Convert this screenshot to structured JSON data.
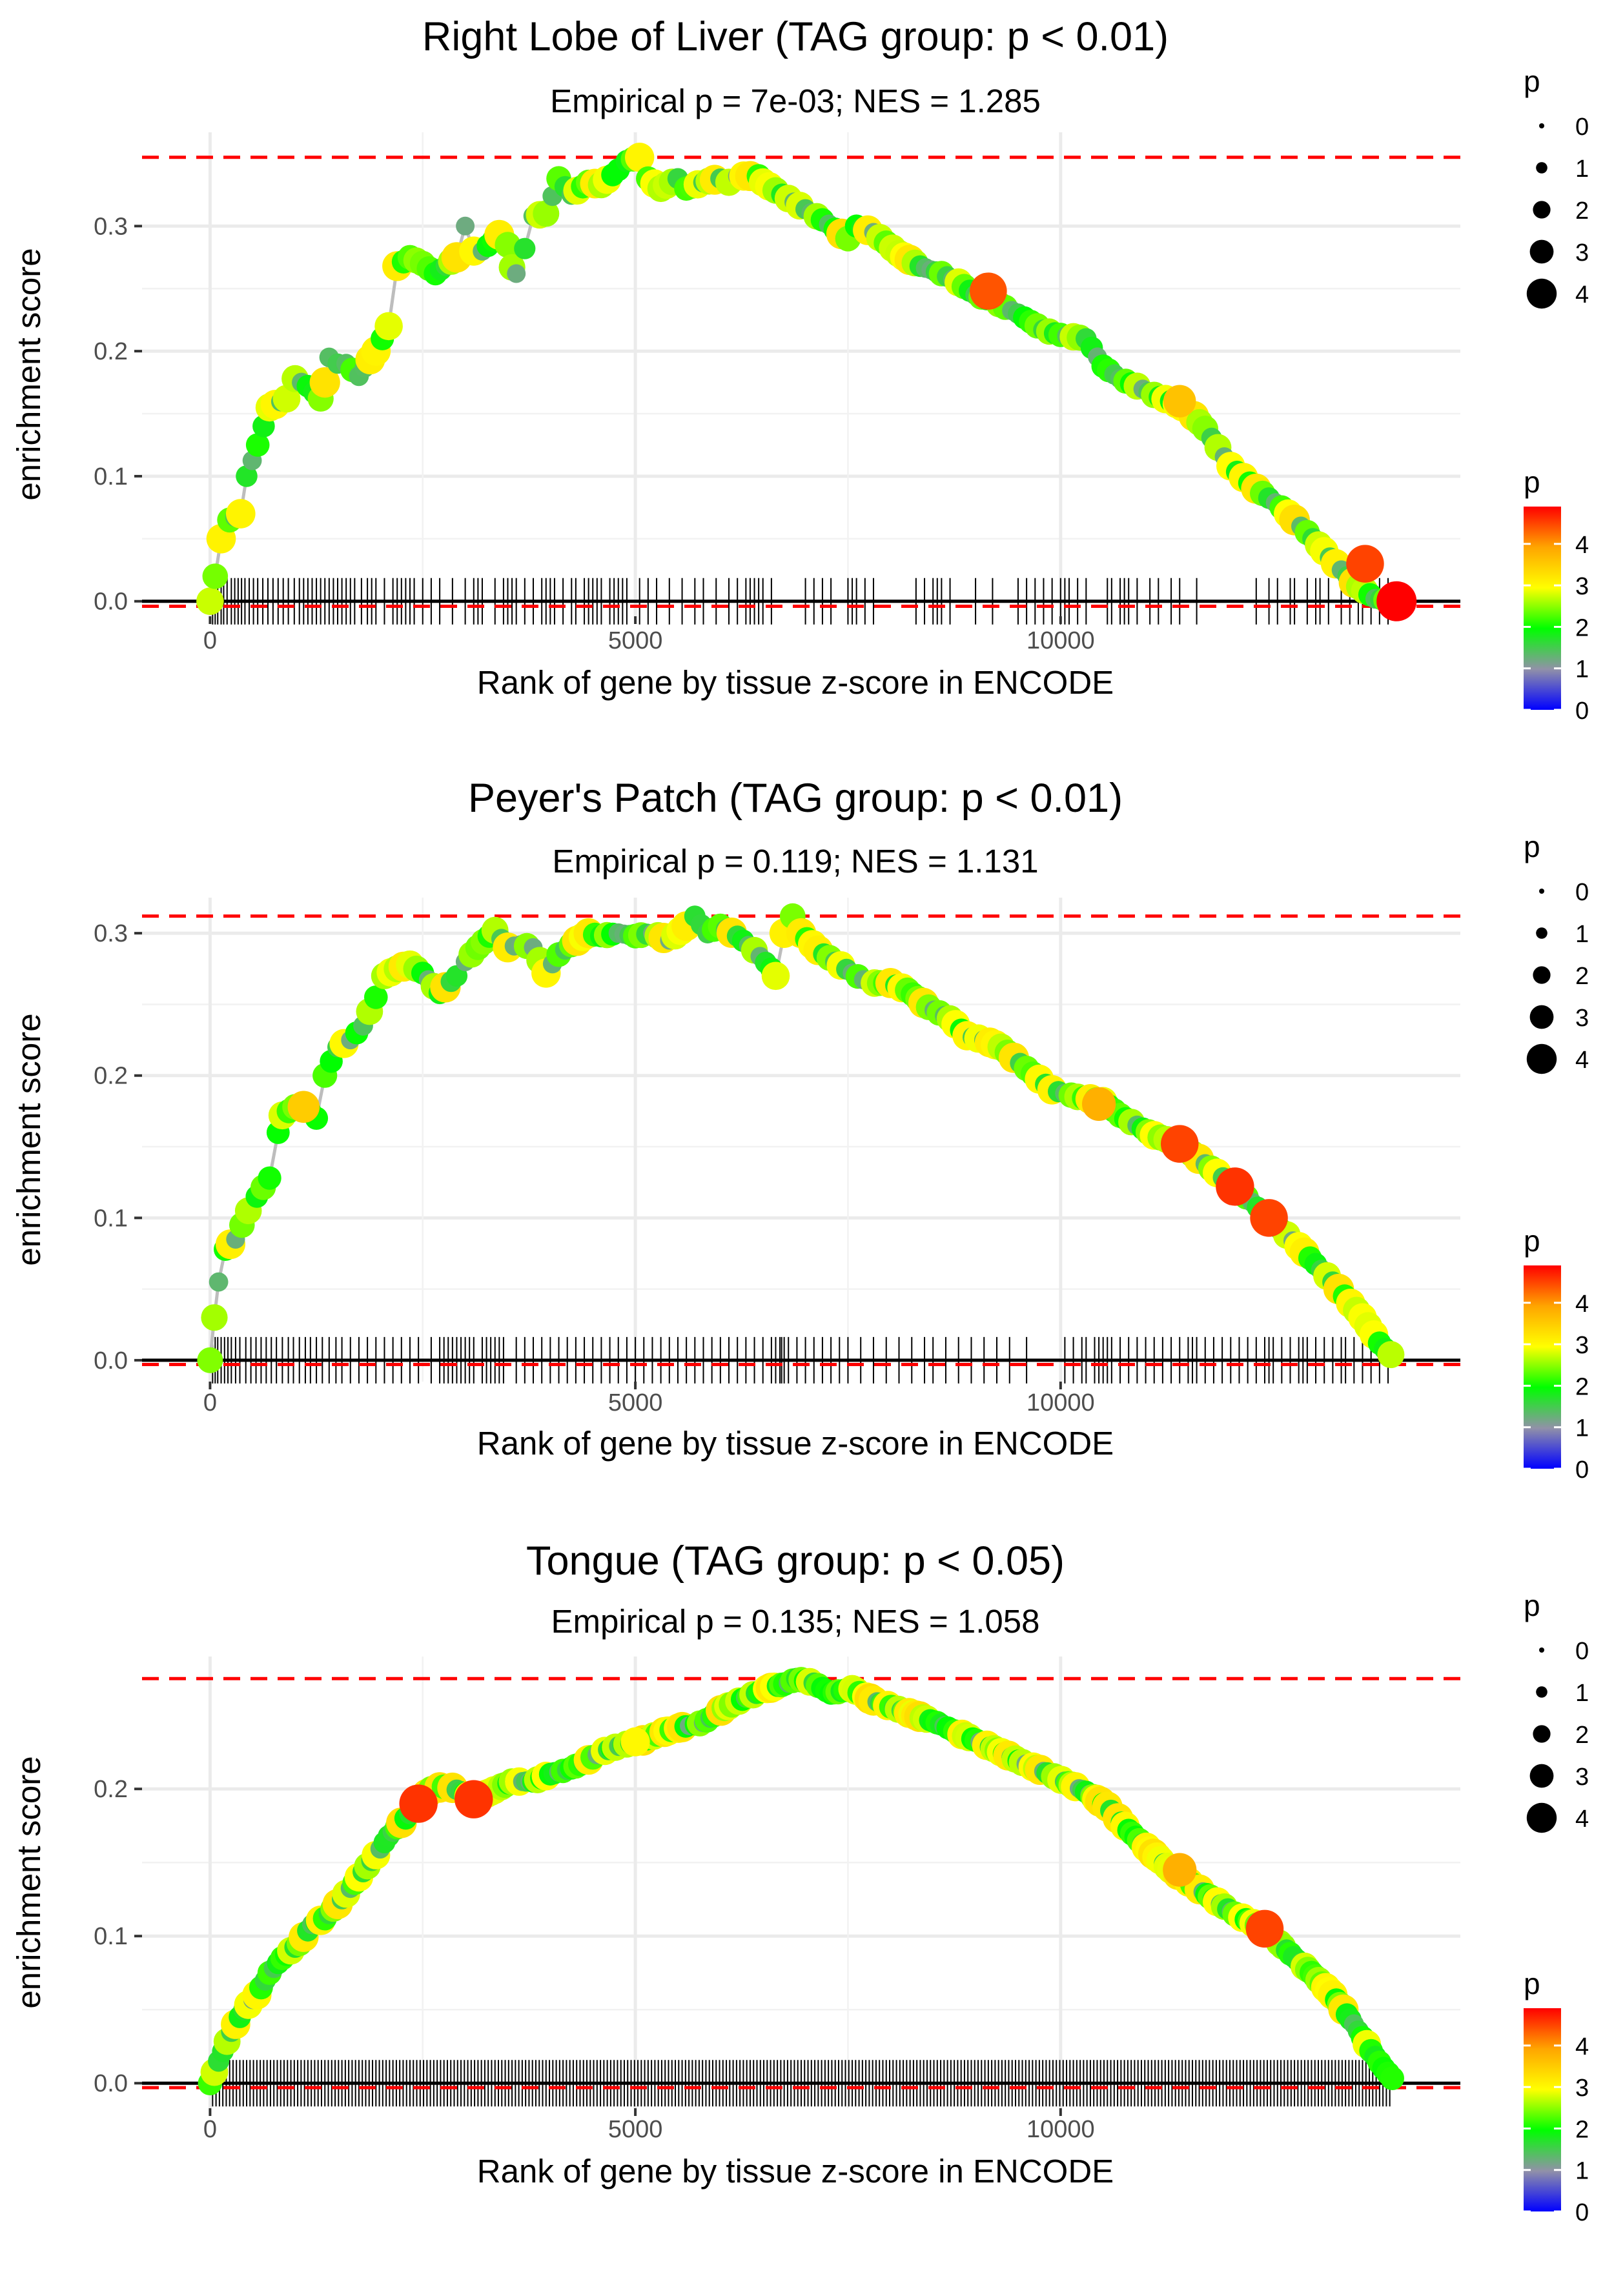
{
  "figure": {
    "legend_size": {
      "title": "p",
      "levels": [
        "0",
        "1",
        "2",
        "3",
        "4"
      ]
    },
    "legend_color": {
      "title": "p",
      "ticks": [
        "0",
        "1",
        "2",
        "3",
        "4"
      ],
      "range": [
        0,
        4.9
      ]
    },
    "x_ticks": [
      "0",
      "5000",
      "10000"
    ],
    "x_tick_values": [
      0,
      5000,
      10000
    ],
    "xlim": [
      -800,
      14700
    ],
    "colors": {
      "line": "#bdbdbd",
      "dash": "#ff0000",
      "grid": "#ebebeb",
      "rug": "#000000",
      "zero": "#000000"
    },
    "color_stops": [
      "#0000ff",
      "#9191a8",
      "#00ff00",
      "#ffff00",
      "#ffa500",
      "#ff0000"
    ]
  },
  "chart_data": [
    {
      "type": "line",
      "title": "Right Lobe of Liver (TAG group: p < 0.01)",
      "subtitle": "Empirical p = 7e-03; NES = 1.285",
      "xlabel": "Rank of gene by tissue z-score in ENCODE",
      "ylabel": "enrichment score",
      "y_ticks": [
        "0.0",
        "0.1",
        "0.2",
        "0.3"
      ],
      "y_tick_values": [
        0,
        0.1,
        0.2,
        0.3
      ],
      "ylim": [
        -0.012,
        0.375
      ],
      "max_es": 0.355,
      "min_dash": -0.004,
      "n_genes": 14000,
      "path": [
        [
          0,
          0
        ],
        [
          60,
          0.02
        ],
        [
          130,
          0.05
        ],
        [
          230,
          0.065
        ],
        [
          360,
          0.07
        ],
        [
          430,
          0.1
        ],
        [
          560,
          0.125
        ],
        [
          700,
          0.155
        ],
        [
          900,
          0.162
        ],
        [
          1000,
          0.178
        ],
        [
          1150,
          0.172
        ],
        [
          1300,
          0.162
        ],
        [
          1350,
          0.175
        ],
        [
          1400,
          0.195
        ],
        [
          1500,
          0.19
        ],
        [
          1600,
          0.19
        ],
        [
          1750,
          0.18
        ],
        [
          1950,
          0.2
        ],
        [
          2100,
          0.22
        ],
        [
          2200,
          0.268
        ],
        [
          2350,
          0.275
        ],
        [
          2500,
          0.27
        ],
        [
          2650,
          0.262
        ],
        [
          2900,
          0.275
        ],
        [
          3000,
          0.3
        ],
        [
          3100,
          0.28
        ],
        [
          3200,
          0.28
        ],
        [
          3400,
          0.293
        ],
        [
          3500,
          0.285
        ],
        [
          3550,
          0.267
        ],
        [
          3600,
          0.262
        ],
        [
          3700,
          0.282
        ],
        [
          3800,
          0.308
        ],
        [
          3950,
          0.31
        ],
        [
          4100,
          0.338
        ],
        [
          4250,
          0.325
        ],
        [
          4450,
          0.335
        ],
        [
          4600,
          0.333
        ],
        [
          4800,
          0.345
        ],
        [
          4900,
          0.352
        ],
        [
          5050,
          0.355
        ],
        [
          5150,
          0.338
        ],
        [
          5300,
          0.33
        ],
        [
          5500,
          0.338
        ],
        [
          5600,
          0.33
        ],
        [
          5800,
          0.335
        ],
        [
          6000,
          0.338
        ],
        [
          6100,
          0.335
        ],
        [
          6200,
          0.34
        ],
        [
          6350,
          0.34
        ],
        [
          6450,
          0.34
        ],
        [
          6500,
          0.335
        ],
        [
          6800,
          0.322
        ],
        [
          7200,
          0.305
        ],
        [
          7500,
          0.29
        ],
        [
          7600,
          0.3
        ],
        [
          7800,
          0.295
        ],
        [
          8100,
          0.278
        ],
        [
          8350,
          0.268
        ],
        [
          8600,
          0.262
        ],
        [
          8800,
          0.255
        ],
        [
          9000,
          0.245
        ],
        [
          9200,
          0.24
        ],
        [
          9500,
          0.23
        ],
        [
          9800,
          0.217
        ],
        [
          10000,
          0.213
        ],
        [
          10300,
          0.21
        ],
        [
          10500,
          0.188
        ],
        [
          10700,
          0.178
        ],
        [
          10900,
          0.172
        ],
        [
          11100,
          0.165
        ],
        [
          11300,
          0.16
        ],
        [
          11500,
          0.153
        ],
        [
          11700,
          0.138
        ],
        [
          12000,
          0.108
        ],
        [
          12300,
          0.09
        ],
        [
          12600,
          0.075
        ],
        [
          12900,
          0.055
        ],
        [
          13100,
          0.04
        ],
        [
          13300,
          0.025
        ],
        [
          13450,
          0.015
        ],
        [
          13700,
          0.002
        ],
        [
          13950,
          0
        ]
      ],
      "big_points": [
        [
          13950,
          0,
          4.9
        ],
        [
          9150,
          0.248,
          4.4
        ],
        [
          13580,
          0.03,
          4.5
        ],
        [
          11400,
          0.16,
          3.6
        ]
      ],
      "rug": [
        30,
        60,
        90,
        130,
        160,
        200,
        250,
        290,
        330,
        370,
        410,
        460,
        510,
        560,
        620,
        680,
        740,
        800,
        860,
        920,
        990,
        1050,
        1100,
        1150,
        1200,
        1250,
        1300,
        1350,
        1400,
        1450,
        1500,
        1550,
        1600,
        1650,
        1700,
        1780,
        1850,
        1900,
        1950,
        2050,
        2150,
        2200,
        2250,
        2300,
        2350,
        2400,
        2500,
        2600,
        2700,
        2850,
        3000,
        3100,
        3150,
        3200,
        3350,
        3450,
        3500,
        3550,
        3600,
        3700,
        3800,
        3900,
        3950,
        4000,
        4050,
        4150,
        4250,
        4300,
        4400,
        4450,
        4500,
        4550,
        4600,
        4700,
        4750,
        4800,
        4850,
        4900,
        5050,
        5150,
        5250,
        5400,
        5550,
        5700,
        5800,
        5950,
        6100,
        6200,
        6300,
        6350,
        6400,
        6450,
        6500,
        6600,
        7000,
        7100,
        7200,
        7300,
        7500,
        7550,
        7600,
        7700,
        7800,
        8300,
        8400,
        8500,
        8550,
        8600,
        8700,
        9000,
        9200,
        9500,
        9600,
        9700,
        9800,
        9900,
        10000,
        10050,
        10100,
        10200,
        10300,
        10550,
        10600,
        10700,
        10750,
        10800,
        10900,
        11050,
        11150,
        11300,
        11400,
        11600,
        12300,
        12450,
        12550,
        12700,
        12750,
        12900,
        13000,
        13050,
        13150,
        13300,
        13400,
        13500,
        13550,
        13650,
        13750,
        13850
      ]
    },
    {
      "type": "line",
      "title": "Peyer's Patch (TAG group: p < 0.01)",
      "subtitle": "Empirical p = 0.119; NES = 1.131",
      "xlabel": "Rank of gene by tissue z-score in ENCODE",
      "ylabel": "enrichment score",
      "y_ticks": [
        "0.0",
        "0.1",
        "0.2",
        "0.3"
      ],
      "y_tick_values": [
        0,
        0.1,
        0.2,
        0.3
      ],
      "ylim": [
        -0.015,
        0.325
      ],
      "max_es": 0.312,
      "min_dash": -0.003,
      "n_genes": 14000,
      "path": [
        [
          0,
          0
        ],
        [
          50,
          0.03
        ],
        [
          100,
          0.055
        ],
        [
          180,
          0.078
        ],
        [
          300,
          0.085
        ],
        [
          450,
          0.105
        ],
        [
          550,
          0.115
        ],
        [
          700,
          0.128
        ],
        [
          800,
          0.16
        ],
        [
          850,
          0.172
        ],
        [
          1000,
          0.178
        ],
        [
          1100,
          0.18
        ],
        [
          1250,
          0.17
        ],
        [
          1350,
          0.2
        ],
        [
          1500,
          0.22
        ],
        [
          1650,
          0.225
        ],
        [
          1800,
          0.235
        ],
        [
          1950,
          0.255
        ],
        [
          2050,
          0.27
        ],
        [
          2200,
          0.275
        ],
        [
          2350,
          0.278
        ],
        [
          2500,
          0.272
        ],
        [
          2700,
          0.258
        ],
        [
          2900,
          0.27
        ],
        [
          3000,
          0.28
        ],
        [
          3150,
          0.29
        ],
        [
          3350,
          0.302
        ],
        [
          3500,
          0.29
        ],
        [
          3650,
          0.292
        ],
        [
          3800,
          0.29
        ],
        [
          3950,
          0.272
        ],
        [
          4100,
          0.285
        ],
        [
          4250,
          0.292
        ],
        [
          4450,
          0.3
        ],
        [
          4600,
          0.298
        ],
        [
          4800,
          0.3
        ],
        [
          5000,
          0.298
        ],
        [
          5200,
          0.3
        ],
        [
          5400,
          0.295
        ],
        [
          5600,
          0.305
        ],
        [
          5700,
          0.312
        ],
        [
          5850,
          0.3
        ],
        [
          6000,
          0.305
        ],
        [
          6200,
          0.298
        ],
        [
          6400,
          0.288
        ],
        [
          6600,
          0.275
        ],
        [
          6650,
          0.27
        ],
        [
          6750,
          0.3
        ],
        [
          6850,
          0.312
        ],
        [
          6950,
          0.3
        ],
        [
          7150,
          0.288
        ],
        [
          7350,
          0.28
        ],
        [
          7550,
          0.272
        ],
        [
          7750,
          0.265
        ],
        [
          8000,
          0.265
        ],
        [
          8200,
          0.26
        ],
        [
          8450,
          0.248
        ],
        [
          8700,
          0.24
        ],
        [
          8900,
          0.228
        ],
        [
          9100,
          0.225
        ],
        [
          9300,
          0.22
        ],
        [
          9600,
          0.205
        ],
        [
          9900,
          0.19
        ],
        [
          10200,
          0.185
        ],
        [
          10500,
          0.182
        ],
        [
          10700,
          0.172
        ],
        [
          10900,
          0.165
        ],
        [
          11100,
          0.158
        ],
        [
          11400,
          0.152
        ],
        [
          11700,
          0.138
        ],
        [
          12050,
          0.122
        ],
        [
          12450,
          0.1
        ],
        [
          12800,
          0.08
        ],
        [
          13200,
          0.055
        ],
        [
          13550,
          0.03
        ],
        [
          13750,
          0.012
        ],
        [
          13950,
          0
        ]
      ],
      "big_points": [
        [
          11400,
          0.152,
          4.5
        ],
        [
          12050,
          0.122,
          4.6
        ],
        [
          12450,
          0.1,
          4.5
        ],
        [
          10450,
          0.18,
          3.8
        ],
        [
          1100,
          0.178,
          3.5
        ]
      ],
      "rug": [
        30,
        60,
        90,
        130,
        170,
        210,
        250,
        300,
        350,
        420,
        480,
        540,
        600,
        660,
        720,
        780,
        850,
        920,
        980,
        1050,
        1120,
        1180,
        1250,
        1320,
        1400,
        1480,
        1550,
        1650,
        1750,
        1850,
        1950,
        2050,
        2150,
        2250,
        2350,
        2450,
        2600,
        2700,
        2750,
        2800,
        2850,
        2900,
        2950,
        3000,
        3050,
        3100,
        3200,
        3250,
        3300,
        3350,
        3400,
        3450,
        3600,
        3700,
        3800,
        3900,
        4000,
        4100,
        4200,
        4300,
        4400,
        4500,
        4600,
        4700,
        4800,
        4900,
        5000,
        5100,
        5200,
        5300,
        5400,
        5500,
        5600,
        5700,
        5800,
        5900,
        6000,
        6100,
        6200,
        6300,
        6400,
        6500,
        6600,
        6650,
        6700,
        6720,
        6750,
        6800,
        6900,
        7000,
        7100,
        7200,
        7300,
        7400,
        7500,
        7650,
        7800,
        7950,
        8100,
        8250,
        8400,
        8500,
        8650,
        8800,
        8950,
        9100,
        9250,
        9400,
        9600,
        10050,
        10150,
        10250,
        10300,
        10400,
        10450,
        10500,
        10550,
        10600,
        10700,
        10800,
        10900,
        11000,
        11100,
        11200,
        11300,
        11400,
        11500,
        11550,
        11600,
        11700,
        11800,
        11900,
        12000,
        12100,
        12200,
        12300,
        12400,
        12450,
        12500,
        12600,
        12700,
        12800,
        12850,
        12900,
        13000,
        13100,
        13200,
        13300,
        13350,
        13450,
        13550,
        13650,
        13750,
        13850
      ]
    },
    {
      "type": "line",
      "title": "Tongue (TAG group: p < 0.05)",
      "subtitle": "Empirical p = 0.135; NES = 1.058",
      "xlabel": "Rank of gene by tissue z-score in ENCODE",
      "ylabel": "enrichment score",
      "y_ticks": [
        "0.0",
        "0.1",
        "0.2"
      ],
      "y_tick_values": [
        0,
        0.1,
        0.2
      ],
      "ylim": [
        -0.017,
        0.29
      ],
      "max_es": 0.275,
      "min_dash": -0.003,
      "n_genes": 14000,
      "path": [
        [
          0,
          0
        ],
        [
          100,
          0.015
        ],
        [
          250,
          0.035
        ],
        [
          400,
          0.05
        ],
        [
          550,
          0.06
        ],
        [
          700,
          0.075
        ],
        [
          850,
          0.085
        ],
        [
          1050,
          0.095
        ],
        [
          1200,
          0.108
        ],
        [
          1350,
          0.112
        ],
        [
          1550,
          0.125
        ],
        [
          1750,
          0.14
        ],
        [
          1950,
          0.155
        ],
        [
          2100,
          0.168
        ],
        [
          2300,
          0.18
        ],
        [
          2450,
          0.19
        ],
        [
          2600,
          0.2
        ],
        [
          2800,
          0.202
        ],
        [
          3000,
          0.197
        ],
        [
          3100,
          0.193
        ],
        [
          3300,
          0.198
        ],
        [
          3550,
          0.205
        ],
        [
          3800,
          0.205
        ],
        [
          4000,
          0.21
        ],
        [
          4200,
          0.213
        ],
        [
          4400,
          0.218
        ],
        [
          4600,
          0.225
        ],
        [
          4850,
          0.23
        ],
        [
          5050,
          0.232
        ],
        [
          5300,
          0.238
        ],
        [
          5550,
          0.242
        ],
        [
          5800,
          0.245
        ],
        [
          6050,
          0.255
        ],
        [
          6300,
          0.262
        ],
        [
          6550,
          0.268
        ],
        [
          6800,
          0.272
        ],
        [
          6900,
          0.275
        ],
        [
          7100,
          0.272
        ],
        [
          7300,
          0.265
        ],
        [
          7550,
          0.268
        ],
        [
          7800,
          0.26
        ],
        [
          8050,
          0.255
        ],
        [
          8300,
          0.25
        ],
        [
          8550,
          0.245
        ],
        [
          8800,
          0.238
        ],
        [
          9050,
          0.232
        ],
        [
          9300,
          0.225
        ],
        [
          9550,
          0.218
        ],
        [
          9800,
          0.212
        ],
        [
          10050,
          0.205
        ],
        [
          10300,
          0.198
        ],
        [
          10550,
          0.188
        ],
        [
          10800,
          0.172
        ],
        [
          11050,
          0.158
        ],
        [
          11300,
          0.145
        ],
        [
          11550,
          0.135
        ],
        [
          11800,
          0.125
        ],
        [
          12050,
          0.115
        ],
        [
          12400,
          0.105
        ],
        [
          12700,
          0.088
        ],
        [
          12950,
          0.075
        ],
        [
          13200,
          0.06
        ],
        [
          13450,
          0.04
        ],
        [
          13650,
          0.022
        ],
        [
          13800,
          0.01
        ],
        [
          13950,
          0
        ]
      ],
      "big_points": [
        [
          2450,
          0.19,
          4.6
        ],
        [
          3100,
          0.193,
          4.6
        ],
        [
          12400,
          0.105,
          4.5
        ],
        [
          11400,
          0.145,
          3.8
        ],
        [
          5000,
          0.232,
          3.0
        ]
      ],
      "rug": []
    }
  ]
}
